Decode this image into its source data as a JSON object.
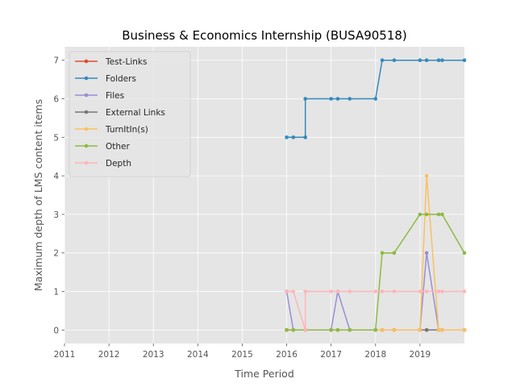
{
  "chart_data": {
    "type": "line",
    "title": "Business & Economics Internship (BUSA90518)",
    "xlabel": "Time Period",
    "ylabel": "Maximum depth of LMS content items",
    "xlim": [
      2011.0,
      2020.0
    ],
    "ylim": [
      -0.35,
      7.35
    ],
    "x_ticks": [
      2011,
      2012,
      2013,
      2014,
      2015,
      2016,
      2017,
      2018,
      2019
    ],
    "x_tick_labels": [
      "2011",
      "2012",
      "2013",
      "2014",
      "2015",
      "2016",
      "2017",
      "2018",
      "2019"
    ],
    "y_ticks": [
      0,
      1,
      2,
      3,
      4,
      5,
      6,
      7
    ],
    "y_tick_labels": [
      "0",
      "1",
      "2",
      "3",
      "4",
      "5",
      "6",
      "7"
    ],
    "grid": true,
    "legend_position": "upper-left",
    "background": "#e5e5e5",
    "series": [
      {
        "name": "Test-Links",
        "color": "#e24a33",
        "x": [
          2016.0,
          2016.15,
          2016.42,
          2017.0,
          2017.15,
          2017.42,
          2018.0,
          2018.15,
          2018.42,
          2019.0,
          2019.15,
          2019.42,
          2019.5,
          2020.0
        ],
        "y": [
          0,
          0,
          0,
          0,
          0,
          0,
          0,
          0,
          0,
          0,
          0,
          0,
          0,
          0
        ]
      },
      {
        "name": "Folders",
        "color": "#348abd",
        "x": [
          2016.0,
          2016.15,
          2016.42,
          2016.42,
          2017.0,
          2017.15,
          2017.42,
          2018.0,
          2018.15,
          2018.42,
          2019.0,
          2019.15,
          2019.42,
          2019.5,
          2020.0
        ],
        "y": [
          5,
          5,
          5,
          6,
          6,
          6,
          6,
          6,
          7,
          7,
          7,
          7,
          7,
          7,
          7
        ]
      },
      {
        "name": "Files",
        "color": "#988ed5",
        "x": [
          2016.0,
          2016.15,
          2016.42,
          2017.0,
          2017.15,
          2017.42,
          2018.0,
          2018.15,
          2018.42,
          2019.0,
          2019.15,
          2019.42,
          2019.5,
          2020.0
        ],
        "y": [
          1,
          0,
          0,
          0,
          1,
          0,
          0,
          0,
          0,
          0,
          2,
          0,
          0,
          0
        ]
      },
      {
        "name": "External Links",
        "color": "#777777",
        "x": [
          2016.0,
          2016.15,
          2016.42,
          2017.0,
          2017.15,
          2017.42,
          2018.0,
          2018.15,
          2018.42,
          2019.0,
          2019.15,
          2019.42,
          2019.5,
          2020.0
        ],
        "y": [
          0,
          0,
          0,
          0,
          0,
          0,
          0,
          0,
          0,
          0,
          0,
          0,
          0,
          0
        ]
      },
      {
        "name": "TurnItIn(s)",
        "color": "#fbc15e",
        "x": [
          2016.0,
          2016.15,
          2016.42,
          2017.0,
          2017.15,
          2017.42,
          2018.0,
          2018.15,
          2018.42,
          2019.0,
          2019.15,
          2019.42,
          2019.5,
          2020.0
        ],
        "y": [
          0,
          0,
          0,
          0,
          0,
          0,
          0,
          0,
          0,
          0,
          4,
          0,
          0,
          0
        ]
      },
      {
        "name": "Other",
        "color": "#8eba42",
        "x": [
          2016.0,
          2016.15,
          2016.42,
          2017.0,
          2017.15,
          2017.42,
          2018.0,
          2018.15,
          2018.42,
          2019.0,
          2019.15,
          2019.42,
          2019.5,
          2020.0
        ],
        "y": [
          0,
          0,
          0,
          0,
          0,
          0,
          0,
          2,
          2,
          3,
          3,
          3,
          3,
          2
        ]
      },
      {
        "name": "Depth",
        "color": "#ffb5b8",
        "x": [
          2016.0,
          2016.15,
          2016.42,
          2016.42,
          2017.0,
          2017.15,
          2017.42,
          2018.0,
          2018.15,
          2018.42,
          2019.0,
          2019.15,
          2019.42,
          2019.5,
          2020.0
        ],
        "y": [
          1,
          1,
          0,
          1,
          1,
          1,
          1,
          1,
          1,
          1,
          1,
          1,
          1,
          1,
          1
        ]
      }
    ]
  }
}
